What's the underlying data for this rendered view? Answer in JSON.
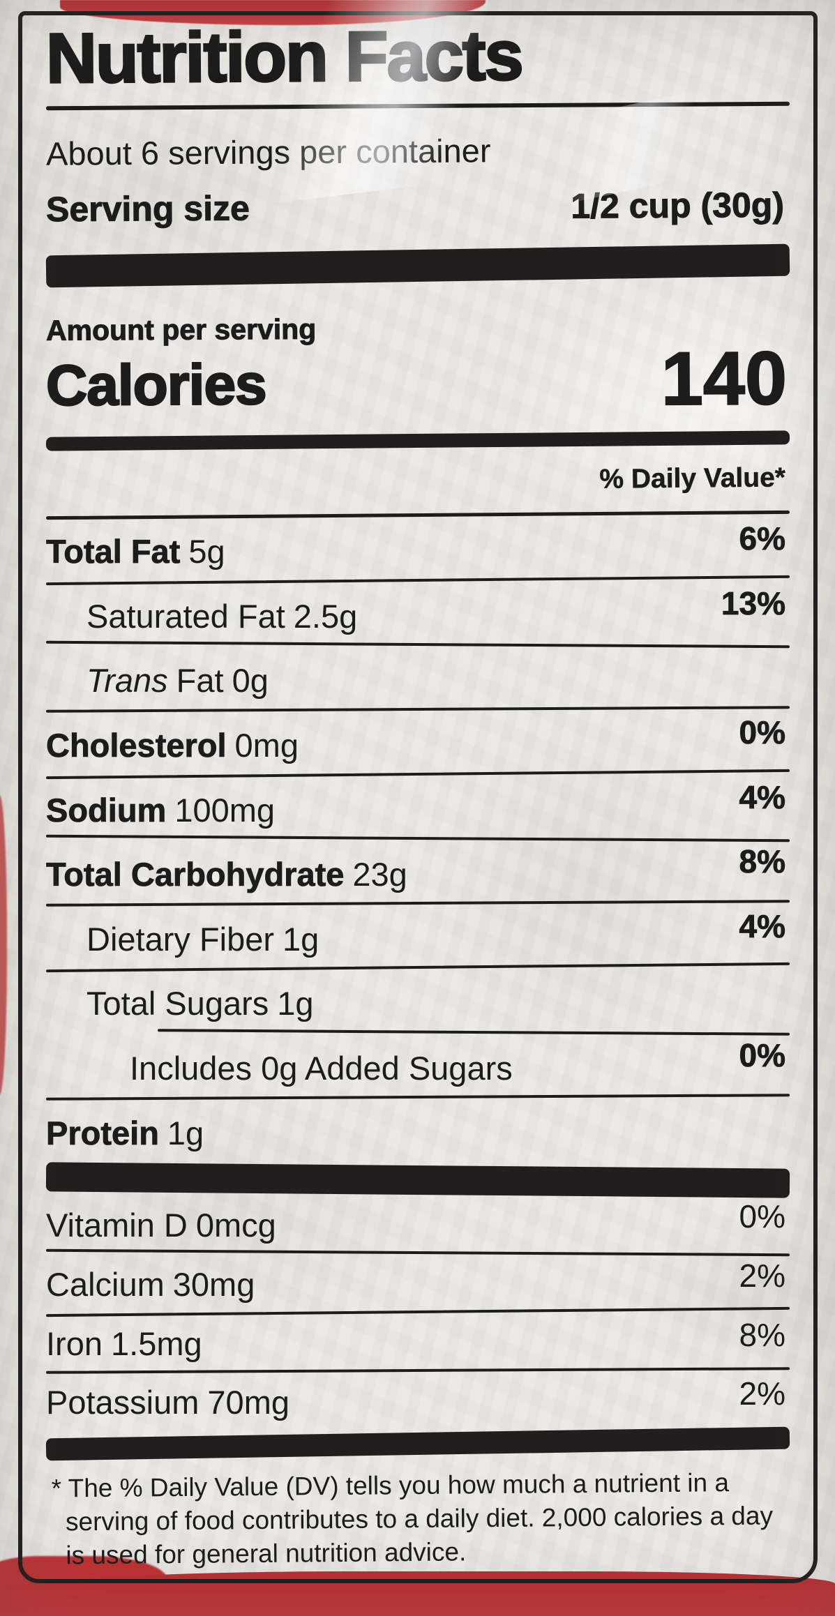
{
  "label": {
    "title": "Nutrition Facts",
    "servings_per_container": "About 6 servings per container",
    "serving_size_label": "Serving size",
    "serving_size_value": "1/2 cup (30g)",
    "amount_per_serving": "Amount per serving",
    "calories_label": "Calories",
    "calories_value": "140",
    "daily_value_header": "% Daily Value*",
    "nutrients": [
      {
        "name": "Total Fat",
        "amount": "5g",
        "dv": "6%"
      },
      {
        "name": "Saturated Fat",
        "amount": "2.5g",
        "dv": "13%"
      },
      {
        "name_italic": "Trans",
        "name": "Fat",
        "amount": "0g",
        "dv": ""
      },
      {
        "name": "Cholesterol",
        "amount": "0mg",
        "dv": "0%"
      },
      {
        "name": "Sodium",
        "amount": "100mg",
        "dv": "4%"
      },
      {
        "name": "Total Carbohydrate",
        "amount": "23g",
        "dv": "8%"
      },
      {
        "name": "Dietary Fiber",
        "amount": "1g",
        "dv": "4%"
      },
      {
        "name": "Total Sugars",
        "amount": "1g",
        "dv": ""
      },
      {
        "name": "Includes 0g Added Sugars",
        "amount": "",
        "dv": "0%"
      },
      {
        "name": "Protein",
        "amount": "1g",
        "dv": ""
      }
    ],
    "micronutrients": [
      {
        "name": "Vitamin D",
        "amount": "0mcg",
        "dv": "0%"
      },
      {
        "name": "Calcium",
        "amount": "30mg",
        "dv": "2%"
      },
      {
        "name": "Iron",
        "amount": "1.5mg",
        "dv": "8%"
      },
      {
        "name": "Potassium",
        "amount": "70mg",
        "dv": "2%"
      }
    ],
    "footnote": "* The % Daily Value (DV) tells you how much a nutrient in a serving of food contributes to a daily diet. 2,000 calories a day is used for general nutrition advice."
  },
  "colors": {
    "bag_red": "#bf3234",
    "ink": "#1c1c1c",
    "paper": "#eae8e4"
  }
}
